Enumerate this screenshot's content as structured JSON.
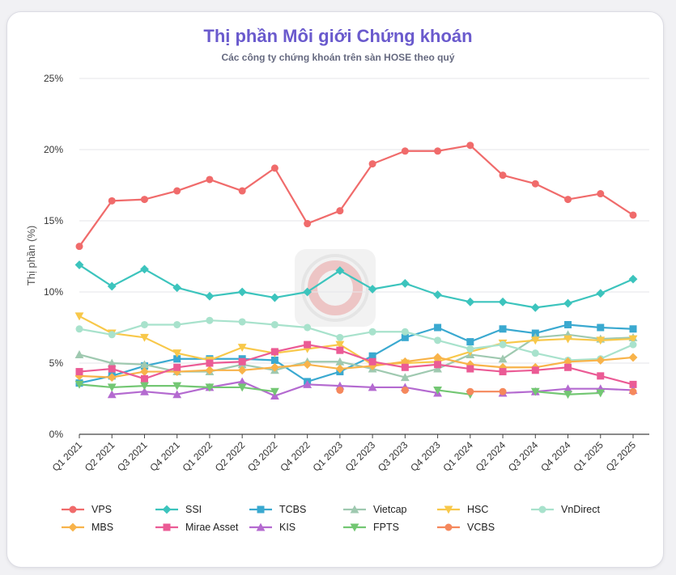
{
  "title": "Thị phần Môi giới Chứng khoán",
  "subtitle": "Các công ty chứng khoán trên sàn HOSE theo quý",
  "chart_data": {
    "type": "line",
    "title": "Thị phần Môi giới Chứng khoán",
    "subtitle": "Các công ty chứng khoán trên sàn HOSE theo quý",
    "xlabel": "",
    "ylabel": "Thị phần (%)",
    "ylim": [
      0,
      25
    ],
    "yticks": [
      "0%",
      "5%",
      "10%",
      "15%",
      "20%",
      "25%"
    ],
    "grid": true,
    "legend_position": "bottom",
    "categories": [
      "Q1 2021",
      "Q2 2021",
      "Q3 2021",
      "Q4 2021",
      "Q1 2022",
      "Q2 2022",
      "Q3 2022",
      "Q4 2022",
      "Q1 2023",
      "Q2 2023",
      "Q3 2023",
      "Q4 2023",
      "Q1 2024",
      "Q2 2024",
      "Q3 2024",
      "Q4 2024",
      "Q1 2025",
      "Q2 2025"
    ],
    "series": [
      {
        "name": "VPS",
        "color": "#f06b6b",
        "marker": "circle",
        "values": [
          13.2,
          16.4,
          16.5,
          17.1,
          17.9,
          17.1,
          18.7,
          14.8,
          15.7,
          19.0,
          19.9,
          19.9,
          20.3,
          18.2,
          17.6,
          16.5,
          16.9,
          15.4
        ]
      },
      {
        "name": "SSI",
        "color": "#3cc4bd",
        "marker": "diamond",
        "values": [
          11.9,
          10.4,
          11.6,
          10.3,
          9.7,
          10.0,
          9.6,
          10.0,
          11.5,
          10.2,
          10.6,
          9.8,
          9.3,
          9.3,
          8.9,
          9.2,
          9.9,
          10.9
        ]
      },
      {
        "name": "TCBS",
        "color": "#3aa9d0",
        "marker": "square",
        "values": [
          3.6,
          4.1,
          4.8,
          5.3,
          5.3,
          5.3,
          5.2,
          3.7,
          4.4,
          5.5,
          6.8,
          7.5,
          6.5,
          7.4,
          7.1,
          7.7,
          7.5,
          7.4
        ]
      },
      {
        "name": "Vietcap",
        "color": "#9fc9b0",
        "marker": "triangle-up",
        "values": [
          5.6,
          5.0,
          4.9,
          4.4,
          4.4,
          4.9,
          4.5,
          5.1,
          5.1,
          4.6,
          4.0,
          4.6,
          5.6,
          5.3,
          6.8,
          7.0,
          6.7,
          6.8
        ]
      },
      {
        "name": "HSC",
        "color": "#f8c84a",
        "marker": "triangle-down",
        "values": [
          8.3,
          7.1,
          6.8,
          5.7,
          5.2,
          6.1,
          5.7,
          6.0,
          6.3,
          4.9,
          5.0,
          5.1,
          5.8,
          6.4,
          6.6,
          6.7,
          6.6,
          6.7
        ]
      },
      {
        "name": "VnDirect",
        "color": "#a8e2cc",
        "marker": "circle",
        "values": [
          7.4,
          7.0,
          7.7,
          7.7,
          8.0,
          7.9,
          7.7,
          7.5,
          6.8,
          7.2,
          7.2,
          6.6,
          6.0,
          6.3,
          5.7,
          5.2,
          5.3,
          6.3
        ]
      },
      {
        "name": "MBS",
        "color": "#f8b34a",
        "marker": "diamond",
        "values": [
          4.1,
          4.0,
          4.4,
          4.4,
          4.5,
          4.5,
          4.7,
          4.9,
          4.6,
          4.8,
          5.1,
          5.4,
          4.9,
          4.7,
          4.7,
          5.1,
          5.2,
          5.4
        ]
      },
      {
        "name": "Mirae Asset",
        "color": "#eb5b95",
        "marker": "square",
        "values": [
          4.4,
          4.6,
          3.9,
          4.7,
          5.0,
          5.1,
          5.8,
          6.3,
          5.9,
          5.1,
          4.7,
          4.9,
          4.6,
          4.4,
          4.5,
          4.7,
          4.1,
          3.5
        ]
      },
      {
        "name": "KIS",
        "color": "#b46ad0",
        "marker": "triangle-up",
        "values": [
          null,
          2.8,
          3.0,
          2.8,
          3.3,
          3.7,
          2.7,
          3.5,
          3.4,
          3.3,
          3.3,
          2.9,
          null,
          2.9,
          3.0,
          3.2,
          3.2,
          3.1
        ]
      },
      {
        "name": "FPTS",
        "color": "#73c773",
        "marker": "triangle-down",
        "values": [
          3.5,
          3.3,
          3.4,
          3.4,
          3.3,
          3.3,
          3.0,
          null,
          null,
          null,
          null,
          3.1,
          2.8,
          null,
          3.0,
          2.8,
          2.9,
          null
        ]
      },
      {
        "name": "VCBS",
        "color": "#f5885c",
        "marker": "circle",
        "values": [
          null,
          null,
          null,
          null,
          null,
          null,
          null,
          null,
          3.1,
          null,
          3.1,
          null,
          3.0,
          3.0,
          null,
          null,
          null,
          3.0
        ]
      }
    ]
  }
}
